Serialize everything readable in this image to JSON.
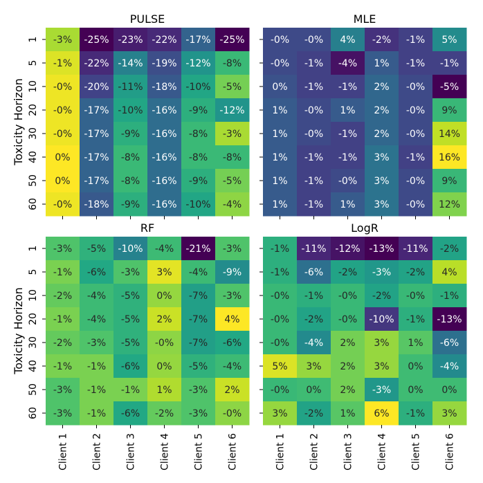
{
  "colormap": "viridis",
  "chart_data": [
    {
      "type": "heatmap",
      "title": "PULSE",
      "ylabel": "Toxicity Horizon",
      "xlabel": "",
      "x_categories": [
        "Client 1",
        "Client 2",
        "Client 3",
        "Client 4",
        "Client 5",
        "Client 6"
      ],
      "y_categories": [
        "1",
        "5",
        "10",
        "20",
        "30",
        "40",
        "50",
        "60"
      ],
      "values": [
        [
          -3,
          -25,
          -23,
          -22,
          -17,
          -25
        ],
        [
          -1,
          -22,
          -14,
          -19,
          -12,
          -8
        ],
        [
          -0.3,
          -20,
          -11,
          -18,
          -10,
          -5
        ],
        [
          -0.3,
          -17,
          -10,
          -16,
          -9,
          -12
        ],
        [
          -0.3,
          -17,
          -9,
          -16,
          -8,
          -3
        ],
        [
          0.3,
          -17,
          -8,
          -16,
          -8,
          -8
        ],
        [
          0.3,
          -17,
          -8,
          -16,
          -9,
          -5
        ],
        [
          -0.3,
          -18,
          -9,
          -16,
          -10,
          -4
        ]
      ],
      "labels": [
        [
          "-3%",
          "-25%",
          "-23%",
          "-22%",
          "-17%",
          "-25%"
        ],
        [
          "-1%",
          "-22%",
          "-14%",
          "-19%",
          "-12%",
          "-8%"
        ],
        [
          "-0%",
          "-20%",
          "-11%",
          "-18%",
          "-10%",
          "-5%"
        ],
        [
          "-0%",
          "-17%",
          "-10%",
          "-16%",
          "-9%",
          "-12%"
        ],
        [
          "-0%",
          "-17%",
          "-9%",
          "-16%",
          "-8%",
          "-3%"
        ],
        [
          "0%",
          "-17%",
          "-8%",
          "-16%",
          "-8%",
          "-8%"
        ],
        [
          "0%",
          "-17%",
          "-8%",
          "-16%",
          "-9%",
          "-5%"
        ],
        [
          "-0%",
          "-18%",
          "-9%",
          "-16%",
          "-10%",
          "-4%"
        ]
      ],
      "show_yticks": true,
      "show_xticks": false
    },
    {
      "type": "heatmap",
      "title": "MLE",
      "ylabel": "",
      "xlabel": "",
      "x_categories": [
        "Client 1",
        "Client 2",
        "Client 3",
        "Client 4",
        "Client 5",
        "Client 6"
      ],
      "y_categories": [
        "1",
        "5",
        "10",
        "20",
        "30",
        "40",
        "50",
        "60"
      ],
      "values": [
        [
          -0.3,
          -0.3,
          4,
          -2,
          -1,
          5
        ],
        [
          -0.3,
          -1,
          -4,
          1,
          -1,
          -1
        ],
        [
          0.3,
          -1,
          -1,
          2,
          -0.3,
          -5
        ],
        [
          1,
          -0.3,
          1,
          2,
          -0.3,
          9
        ],
        [
          1,
          -0.3,
          -1,
          2,
          -0.3,
          14
        ],
        [
          1,
          -1,
          -1,
          3,
          -1,
          16
        ],
        [
          1,
          -1,
          -0.3,
          3,
          -0.3,
          9
        ],
        [
          1,
          -1,
          1,
          3,
          -0.3,
          12
        ]
      ],
      "labels": [
        [
          "-0%",
          "-0%",
          "4%",
          "-2%",
          "-1%",
          "5%"
        ],
        [
          "-0%",
          "-1%",
          "-4%",
          "1%",
          "-1%",
          "-1%"
        ],
        [
          "0%",
          "-1%",
          "-1%",
          "2%",
          "-0%",
          "-5%"
        ],
        [
          "1%",
          "-0%",
          "1%",
          "2%",
          "-0%",
          "9%"
        ],
        [
          "1%",
          "-0%",
          "-1%",
          "2%",
          "-0%",
          "14%"
        ],
        [
          "1%",
          "-1%",
          "-1%",
          "3%",
          "-1%",
          "16%"
        ],
        [
          "1%",
          "-1%",
          "-0%",
          "3%",
          "-0%",
          "9%"
        ],
        [
          "1%",
          "-1%",
          "1%",
          "3%",
          "-0%",
          "12%"
        ]
      ],
      "show_yticks": false,
      "show_xticks": false
    },
    {
      "type": "heatmap",
      "title": "RF",
      "ylabel": "Toxicity Horizon",
      "xlabel": "",
      "x_categories": [
        "Client 1",
        "Client 2",
        "Client 3",
        "Client 4",
        "Client 5",
        "Client 6"
      ],
      "y_categories": [
        "1",
        "5",
        "10",
        "20",
        "30",
        "40",
        "50",
        "60"
      ],
      "values": [
        [
          -3,
          -5,
          -10,
          -4,
          -21,
          -3
        ],
        [
          -1,
          -6,
          -3,
          3,
          -4,
          -9
        ],
        [
          -2,
          -4,
          -5,
          0,
          -7,
          -3
        ],
        [
          -1,
          -4,
          -5,
          2,
          -7,
          4
        ],
        [
          -2,
          -3,
          -5,
          -0.3,
          -7,
          -6
        ],
        [
          -1,
          -1,
          -6,
          0,
          -5,
          -4
        ],
        [
          -3,
          -1,
          -1,
          1,
          -3,
          2
        ],
        [
          -3,
          -1,
          -6,
          -2,
          -3,
          -0.3
        ]
      ],
      "labels": [
        [
          "-3%",
          "-5%",
          "-10%",
          "-4%",
          "-21%",
          "-3%"
        ],
        [
          "-1%",
          "-6%",
          "-3%",
          "3%",
          "-4%",
          "-9%"
        ],
        [
          "-2%",
          "-4%",
          "-5%",
          "0%",
          "-7%",
          "-3%"
        ],
        [
          "-1%",
          "-4%",
          "-5%",
          "2%",
          "-7%",
          "4%"
        ],
        [
          "-2%",
          "-3%",
          "-5%",
          "-0%",
          "-7%",
          "-6%"
        ],
        [
          "-1%",
          "-1%",
          "-6%",
          "0%",
          "-5%",
          "-4%"
        ],
        [
          "-3%",
          "-1%",
          "-1%",
          "1%",
          "-3%",
          "2%"
        ],
        [
          "-3%",
          "-1%",
          "-6%",
          "-2%",
          "-3%",
          "-0%"
        ]
      ],
      "show_yticks": true,
      "show_xticks": true
    },
    {
      "type": "heatmap",
      "title": "LogR",
      "ylabel": "",
      "xlabel": "",
      "x_categories": [
        "Client 1",
        "Client 2",
        "Client 3",
        "Client 4",
        "Client 5",
        "Client 6"
      ],
      "y_categories": [
        "1",
        "5",
        "10",
        "20",
        "30",
        "40",
        "50",
        "60"
      ],
      "values": [
        [
          -1,
          -11,
          -12,
          -13,
          -11,
          -2
        ],
        [
          -1,
          -6,
          -2,
          -3,
          -2,
          4
        ],
        [
          -0.3,
          -1,
          -0.3,
          -2,
          -0.3,
          -1
        ],
        [
          -0.3,
          -2,
          -0.3,
          -10,
          -1,
          -13
        ],
        [
          -0.3,
          -4,
          2,
          3,
          1,
          -6
        ],
        [
          5,
          3,
          2,
          3,
          0,
          -4
        ],
        [
          -0.3,
          0,
          2,
          -3,
          0,
          0
        ],
        [
          3,
          -2,
          1,
          6,
          -1,
          3
        ]
      ],
      "labels": [
        [
          "-1%",
          "-11%",
          "-12%",
          "-13%",
          "-11%",
          "-2%"
        ],
        [
          "-1%",
          "-6%",
          "-2%",
          "-3%",
          "-2%",
          "4%"
        ],
        [
          "-0%",
          "-1%",
          "-0%",
          "-2%",
          "-0%",
          "-1%"
        ],
        [
          "-0%",
          "-2%",
          "-0%",
          "-10%",
          "-1%",
          "-13%"
        ],
        [
          "-0%",
          "-4%",
          "2%",
          "3%",
          "1%",
          "-6%"
        ],
        [
          "5%",
          "3%",
          "2%",
          "3%",
          "0%",
          "-4%"
        ],
        [
          "-0%",
          "0%",
          "2%",
          "-3%",
          "0%",
          "0%"
        ],
        [
          "3%",
          "-2%",
          "1%",
          "6%",
          "-1%",
          "3%"
        ]
      ],
      "show_yticks": false,
      "show_xticks": true
    }
  ]
}
